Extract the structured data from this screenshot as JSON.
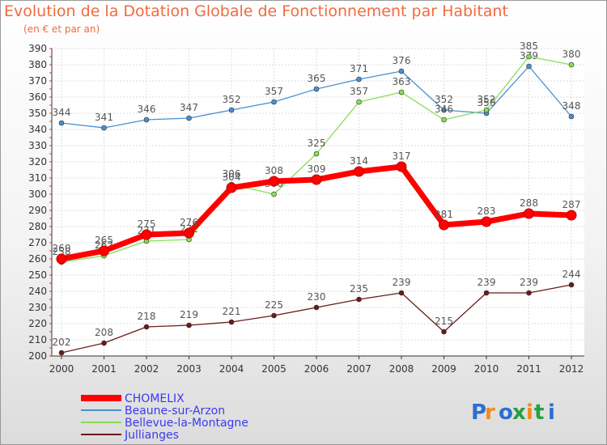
{
  "title": "Evolution de la Dotation Globale de Fonctionnement par Habitant",
  "subtitle": "(en € et par an)",
  "logo_text": "Proxiti",
  "chart_data": {
    "type": "line",
    "x": [
      "2000",
      "2001",
      "2002",
      "2003",
      "2004",
      "2005",
      "2006",
      "2007",
      "2008",
      "2009",
      "2010",
      "2011",
      "2012"
    ],
    "ylim": [
      200,
      390
    ],
    "yticks": [
      200,
      210,
      220,
      230,
      240,
      250,
      260,
      270,
      280,
      290,
      300,
      310,
      320,
      330,
      340,
      350,
      360,
      370,
      380,
      390
    ],
    "grid": true,
    "legend_position": "bottom-left",
    "series": [
      {
        "name": "Beaune-sur-Arzon",
        "color": "#4a8fd0",
        "values": [
          344,
          341,
          346,
          347,
          352,
          357,
          365,
          371,
          376,
          352,
          350,
          379,
          348
        ]
      },
      {
        "name": "Bellevue-la-Montagne",
        "color": "#88dd55",
        "values": [
          258,
          262,
          271,
          272,
          306,
          300,
          325,
          357,
          363,
          346,
          352,
          385,
          380
        ]
      },
      {
        "name": "Jullianges",
        "color": "#6b1a1a",
        "values": [
          202,
          208,
          218,
          219,
          221,
          225,
          230,
          235,
          239,
          215,
          239,
          239,
          244
        ]
      },
      {
        "name": "CHOMELIX",
        "color": "#ff0000",
        "values": [
          260,
          265,
          275,
          276,
          304,
          308,
          309,
          314,
          317,
          281,
          283,
          288,
          287
        ]
      }
    ],
    "legend_order": [
      "CHOMELIX",
      "Beaune-sur-Arzon",
      "Bellevue-la-Montagne",
      "Jullianges"
    ]
  }
}
